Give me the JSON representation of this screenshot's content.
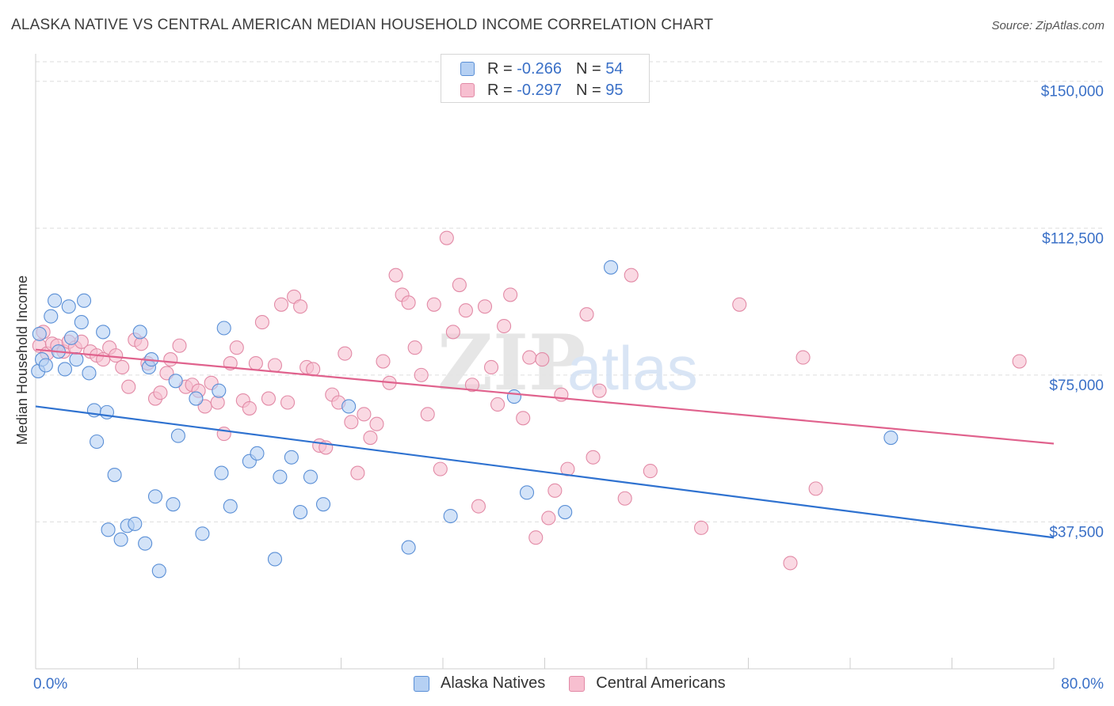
{
  "header": {
    "title": "ALASKA NATIVE VS CENTRAL AMERICAN MEDIAN HOUSEHOLD INCOME CORRELATION CHART",
    "source": "Source: ZipAtlas.com"
  },
  "legend": {
    "series1": {
      "r_label": "R =",
      "r_value": "-0.266",
      "n_label": "N =",
      "n_value": "54"
    },
    "series2": {
      "r_label": "R =",
      "r_value": "-0.297",
      "n_label": "N =",
      "n_value": "95"
    }
  },
  "watermark": {
    "zip": "ZIP",
    "atlas": "atlas"
  },
  "colors": {
    "blue_fill": "#b5d0f3",
    "blue_stroke": "#5a8fd6",
    "blue_line": "#2f72d0",
    "pink_fill": "#f7bfd0",
    "pink_stroke": "#e28aa6",
    "pink_line": "#e0628d",
    "axis_label": "#3a70c7",
    "grid": "#dddddd"
  },
  "chart_data": {
    "type": "scatter",
    "title": "ALASKA NATIVE VS CENTRAL AMERICAN MEDIAN HOUSEHOLD INCOME CORRELATION CHART",
    "xlabel": "",
    "ylabel": "Median Household Income",
    "xlim": [
      0,
      80
    ],
    "ylim": [
      0,
      155000
    ],
    "x_tick_labels": [
      "0.0%",
      "80.0%"
    ],
    "y_ticks": [
      37500,
      75000,
      112500,
      150000
    ],
    "y_tick_labels": [
      "$37,500",
      "$75,000",
      "$112,500",
      "$150,000"
    ],
    "legend_position": "top-center",
    "series": [
      {
        "name": "Alaska Natives",
        "r": -0.266,
        "n": 54,
        "trend": {
          "x": [
            0,
            80
          ],
          "y": [
            67000,
            33500
          ]
        },
        "points": [
          [
            0.2,
            76000
          ],
          [
            0.5,
            79000
          ],
          [
            0.8,
            77500
          ],
          [
            1.2,
            90000
          ],
          [
            1.5,
            94000
          ],
          [
            1.8,
            81000
          ],
          [
            2.3,
            76500
          ],
          [
            2.6,
            92500
          ],
          [
            2.8,
            84500
          ],
          [
            3.2,
            79000
          ],
          [
            3.6,
            88500
          ],
          [
            3.8,
            94000
          ],
          [
            4.2,
            75500
          ],
          [
            4.6,
            66000
          ],
          [
            4.8,
            58000
          ],
          [
            5.3,
            86000
          ],
          [
            5.6,
            65500
          ],
          [
            6.2,
            49500
          ],
          [
            5.7,
            35500
          ],
          [
            6.7,
            33000
          ],
          [
            7.2,
            36500
          ],
          [
            7.8,
            37000
          ],
          [
            8.2,
            86000
          ],
          [
            8.6,
            32000
          ],
          [
            8.9,
            77000
          ],
          [
            9.1,
            79000
          ],
          [
            9.4,
            44000
          ],
          [
            9.7,
            25000
          ],
          [
            10.8,
            42000
          ],
          [
            11.0,
            73500
          ],
          [
            11.2,
            59500
          ],
          [
            12.6,
            69000
          ],
          [
            13.1,
            34500
          ],
          [
            14.4,
            71000
          ],
          [
            14.6,
            50000
          ],
          [
            14.8,
            87000
          ],
          [
            15.3,
            41500
          ],
          [
            16.8,
            53000
          ],
          [
            17.4,
            55000
          ],
          [
            18.8,
            28000
          ],
          [
            19.2,
            49000
          ],
          [
            20.1,
            54000
          ],
          [
            20.8,
            40000
          ],
          [
            21.6,
            49000
          ],
          [
            22.6,
            42000
          ],
          [
            24.6,
            67000
          ],
          [
            29.3,
            31000
          ],
          [
            32.6,
            39000
          ],
          [
            37.6,
            69500
          ],
          [
            38.6,
            45000
          ],
          [
            41.6,
            40000
          ],
          [
            45.2,
            102500
          ],
          [
            67.2,
            59000
          ],
          [
            0.3,
            85500
          ]
        ]
      },
      {
        "name": "Central Americans",
        "r": -0.297,
        "n": 95,
        "trend": {
          "x": [
            0,
            80
          ],
          "y": [
            81500,
            57500
          ]
        },
        "points": [
          [
            0.3,
            82500
          ],
          [
            0.6,
            86000
          ],
          [
            0.9,
            80500
          ],
          [
            1.3,
            83000
          ],
          [
            1.7,
            82500
          ],
          [
            2.2,
            81000
          ],
          [
            2.6,
            83500
          ],
          [
            3.1,
            82000
          ],
          [
            3.6,
            83500
          ],
          [
            4.3,
            81000
          ],
          [
            4.8,
            80000
          ],
          [
            5.3,
            79000
          ],
          [
            5.8,
            82000
          ],
          [
            6.3,
            80000
          ],
          [
            6.8,
            77000
          ],
          [
            7.3,
            72000
          ],
          [
            7.8,
            84000
          ],
          [
            8.3,
            83000
          ],
          [
            8.8,
            78000
          ],
          [
            9.4,
            69000
          ],
          [
            9.8,
            70500
          ],
          [
            10.3,
            75500
          ],
          [
            10.6,
            79000
          ],
          [
            11.3,
            82500
          ],
          [
            11.8,
            72000
          ],
          [
            12.3,
            72500
          ],
          [
            12.8,
            71000
          ],
          [
            13.3,
            67000
          ],
          [
            13.8,
            73000
          ],
          [
            14.3,
            68000
          ],
          [
            14.8,
            60000
          ],
          [
            15.3,
            78000
          ],
          [
            15.8,
            82000
          ],
          [
            16.3,
            68500
          ],
          [
            16.8,
            66500
          ],
          [
            17.3,
            78000
          ],
          [
            17.8,
            88500
          ],
          [
            18.3,
            69000
          ],
          [
            18.8,
            77500
          ],
          [
            19.3,
            93000
          ],
          [
            19.8,
            68000
          ],
          [
            20.3,
            95000
          ],
          [
            20.8,
            92500
          ],
          [
            21.3,
            77000
          ],
          [
            21.8,
            76500
          ],
          [
            22.3,
            57000
          ],
          [
            22.8,
            56500
          ],
          [
            23.3,
            70000
          ],
          [
            23.8,
            68000
          ],
          [
            24.3,
            80500
          ],
          [
            24.8,
            63000
          ],
          [
            25.3,
            50000
          ],
          [
            25.8,
            65000
          ],
          [
            26.3,
            59000
          ],
          [
            26.8,
            62500
          ],
          [
            27.3,
            78500
          ],
          [
            27.8,
            73000
          ],
          [
            28.3,
            100500
          ],
          [
            28.8,
            95500
          ],
          [
            29.3,
            93500
          ],
          [
            29.8,
            82000
          ],
          [
            30.3,
            75000
          ],
          [
            30.8,
            65000
          ],
          [
            31.3,
            93000
          ],
          [
            31.8,
            51000
          ],
          [
            32.3,
            110000
          ],
          [
            32.8,
            86000
          ],
          [
            33.3,
            98000
          ],
          [
            33.8,
            91500
          ],
          [
            34.3,
            72500
          ],
          [
            34.8,
            41500
          ],
          [
            35.3,
            92500
          ],
          [
            35.8,
            77000
          ],
          [
            36.3,
            67500
          ],
          [
            36.8,
            87500
          ],
          [
            37.3,
            95500
          ],
          [
            38.3,
            64000
          ],
          [
            38.8,
            79500
          ],
          [
            39.3,
            33500
          ],
          [
            39.8,
            79000
          ],
          [
            40.3,
            38500
          ],
          [
            40.8,
            45500
          ],
          [
            41.3,
            70000
          ],
          [
            41.8,
            51000
          ],
          [
            43.3,
            90500
          ],
          [
            43.8,
            54000
          ],
          [
            44.3,
            71000
          ],
          [
            46.3,
            43500
          ],
          [
            46.8,
            100500
          ],
          [
            48.3,
            50500
          ],
          [
            52.3,
            36000
          ],
          [
            55.3,
            93000
          ],
          [
            59.3,
            27000
          ],
          [
            60.3,
            79500
          ],
          [
            61.3,
            46000
          ],
          [
            77.3,
            78500
          ]
        ]
      }
    ]
  },
  "bottom_legend": {
    "series1": "Alaska Natives",
    "series2": "Central Americans"
  }
}
